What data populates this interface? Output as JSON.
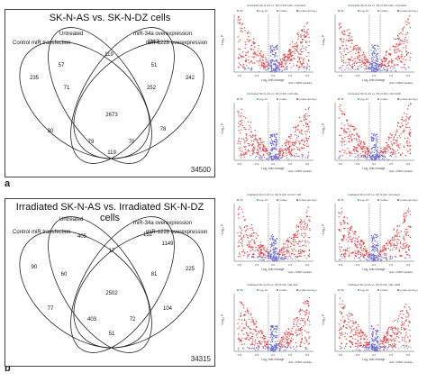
{
  "panels": [
    {
      "letter": "a",
      "title": "SK-N-AS vs. SK-N-DZ cells",
      "sets": [
        "Control miR transfection",
        "Untreated",
        "miR-34a overexpression",
        "miR-1228 overexpression"
      ],
      "regions": [
        "235",
        "57",
        "119",
        "51",
        "242",
        "71",
        "252",
        "2673",
        "30",
        "78",
        "79",
        "70",
        "119",
        "1143"
      ],
      "total": "34500",
      "volcanoes": [
        {
          "title": "Untreated SK-N-AS vs. SK-N-DZ cells, untreated"
        },
        {
          "title": "Untreated SK-N-AS vs. SK-N-DZ cells, untreated"
        },
        {
          "title": "Untreated SK-N-AS vs. SK-N-DZ, miR-34a"
        },
        {
          "title": "Untreated SK-N-AS vs. SK-N-DZ, miR-1228"
        }
      ]
    },
    {
      "letter": "b",
      "title": "Irradiated SK-N-AS vs. Irradiated SK-N-DZ cells",
      "sets": [
        "Control miR transfection",
        "Untreated",
        "miR-34a overexpression",
        "miR-1228 overexpression"
      ],
      "regions": [
        "90",
        "405",
        "17",
        "152",
        "225",
        "60",
        "81",
        "2502",
        "77",
        "104",
        "403",
        "72",
        "51",
        "1149"
      ],
      "total": "34315",
      "volcanoes": [
        {
          "title": "Irradiated SK-N-AS vs. SK-N-DZ, control miR"
        },
        {
          "title": "Irradiated SK-N-AS vs. SK-N-DZ, untreated"
        },
        {
          "title": "Irradiated SK-N-AS vs. SK-N-DZ, miR-34a"
        },
        {
          "title": "Irradiated SK-N-AS vs. SK-N-DZ, miR-1228"
        }
      ]
    }
  ],
  "volcano_axis": {
    "xlabel": "Log₂ fold change",
    "ylabel": "−Log₁₀ P",
    "xticks": [
      "-5.0",
      "-2.5",
      "0.0",
      "2.5",
      "5.0"
    ],
    "legend": [
      "NS",
      "Log₂ FC",
      "p-value",
      "p-value and log₂ FC"
    ],
    "footer": "total = 34500 variables"
  },
  "colors": {
    "significant": "#e8292b",
    "nonsignificant": "#6f6fd8",
    "ellipse": "#222222"
  }
}
